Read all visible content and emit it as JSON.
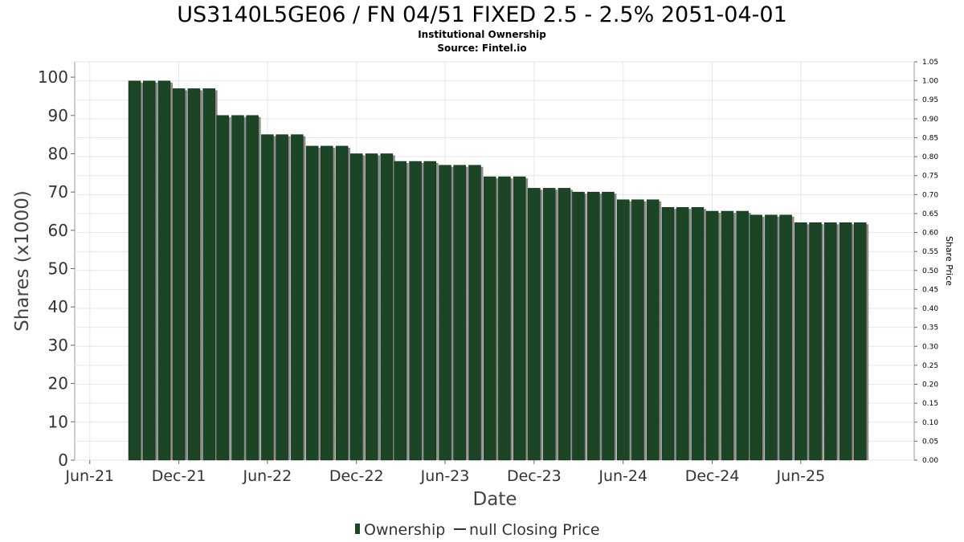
{
  "chart_data": {
    "type": "bar",
    "title": "US3140L5GE06 / FN 04/51 FIXED 2.5 - 2.5% 2051-04-01",
    "subtitle_lines": [
      "Institutional Ownership",
      "Source: Fintel.io"
    ],
    "xlabel": "Date",
    "ylabel": "Shares (x1000)",
    "y2label": "Share Price",
    "ylim": [
      0,
      104
    ],
    "y2lim": [
      0,
      1.05
    ],
    "y_ticks": [
      "0",
      "10",
      "20",
      "30",
      "40",
      "50",
      "60",
      "70",
      "80",
      "90",
      "100"
    ],
    "y2_ticks": [
      "0.00",
      "0.05",
      "0.10",
      "0.15",
      "0.20",
      "0.25",
      "0.30",
      "0.35",
      "0.40",
      "0.45",
      "0.50",
      "0.55",
      "0.60",
      "0.65",
      "0.70",
      "0.75",
      "0.80",
      "0.85",
      "0.90",
      "0.95",
      "1.00",
      "1.05"
    ],
    "x_ticks": [
      "Jun-21",
      "Dec-21",
      "Jun-22",
      "Dec-22",
      "Jun-23",
      "Dec-23",
      "Jun-24",
      "Dec-24",
      "Jun-25"
    ],
    "xlim": [
      "2021-05-01",
      "2026-01-20"
    ],
    "x_tick_dates": [
      "2021-06-01",
      "2021-12-01",
      "2022-06-01",
      "2022-12-01",
      "2023-06-01",
      "2023-12-01",
      "2024-06-01",
      "2024-12-01",
      "2025-06-01"
    ],
    "grid": true,
    "legend_position": "bottom-center",
    "series": [
      {
        "name": "Ownership",
        "color": "#1c4526",
        "dates": [
          "2021-09-01",
          "2021-10-01",
          "2021-11-01",
          "2021-12-01",
          "2022-01-01",
          "2022-02-01",
          "2022-03-01",
          "2022-04-01",
          "2022-05-01",
          "2022-06-01",
          "2022-07-01",
          "2022-08-01",
          "2022-09-01",
          "2022-10-01",
          "2022-11-01",
          "2022-12-01",
          "2023-01-01",
          "2023-02-01",
          "2023-03-01",
          "2023-04-01",
          "2023-05-01",
          "2023-06-01",
          "2023-07-01",
          "2023-08-01",
          "2023-09-01",
          "2023-10-01",
          "2023-11-01",
          "2023-12-01",
          "2024-01-01",
          "2024-02-01",
          "2024-03-01",
          "2024-04-01",
          "2024-05-01",
          "2024-06-01",
          "2024-07-01",
          "2024-08-01",
          "2024-09-01",
          "2024-10-01",
          "2024-11-01",
          "2024-12-01",
          "2025-01-01",
          "2025-02-01",
          "2025-03-01",
          "2025-04-01",
          "2025-05-01",
          "2025-06-01",
          "2025-07-01",
          "2025-08-01",
          "2025-09-01",
          "2025-10-01"
        ],
        "values": [
          99,
          99,
          99,
          97,
          97,
          97,
          90,
          90,
          90,
          85,
          85,
          85,
          82,
          82,
          82,
          80,
          80,
          80,
          78,
          78,
          78,
          77,
          77,
          77,
          74,
          74,
          74,
          71,
          71,
          71,
          70,
          70,
          70,
          68,
          68,
          68,
          66,
          66,
          66,
          65,
          65,
          65,
          64,
          64,
          64,
          62,
          62,
          62,
          62,
          62
        ]
      },
      {
        "name": "null Closing Price",
        "color": "#333333",
        "values": []
      }
    ]
  }
}
